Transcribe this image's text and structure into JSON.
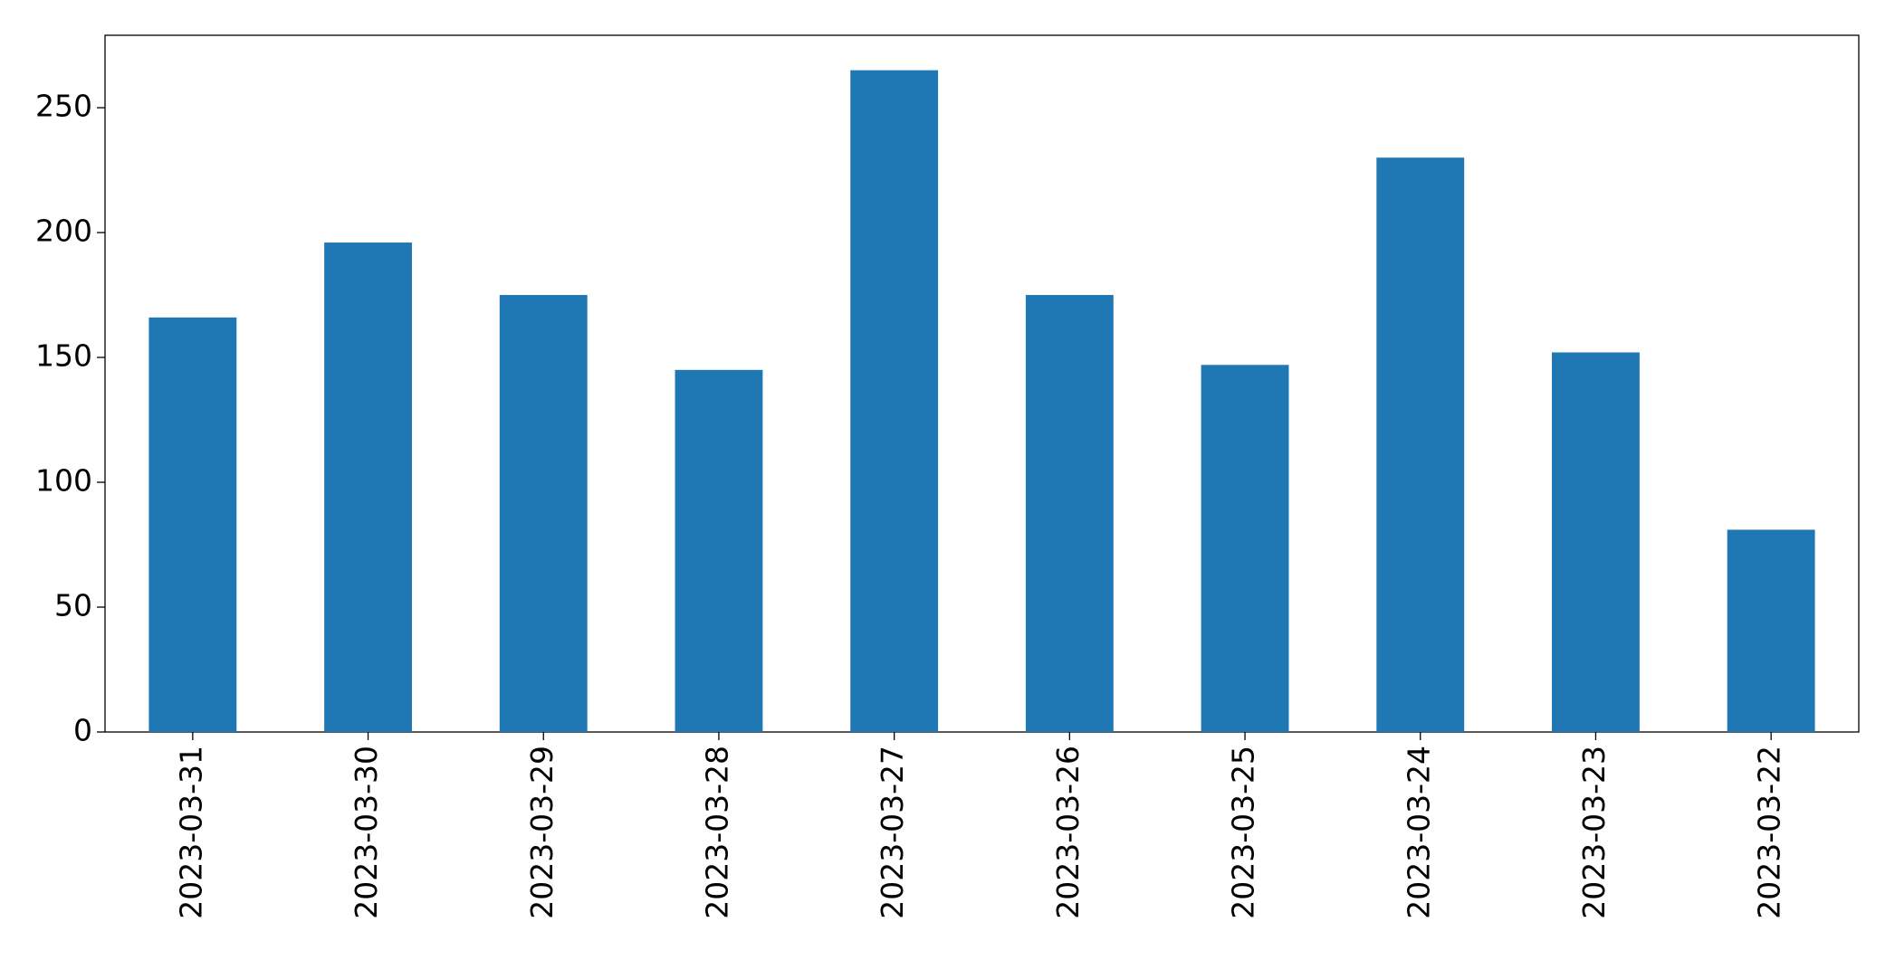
{
  "chart_data": {
    "type": "bar",
    "categories": [
      "2023-03-31",
      "2023-03-30",
      "2023-03-29",
      "2023-03-28",
      "2023-03-27",
      "2023-03-26",
      "2023-03-25",
      "2023-03-24",
      "2023-03-23",
      "2023-03-22"
    ],
    "values": [
      166,
      196,
      175,
      145,
      265,
      175,
      147,
      230,
      152,
      81
    ],
    "color": "#1f77b4",
    "ylim": [
      0,
      279
    ],
    "yticks": [
      0,
      50,
      100,
      150,
      200,
      250
    ],
    "grid": false
  }
}
